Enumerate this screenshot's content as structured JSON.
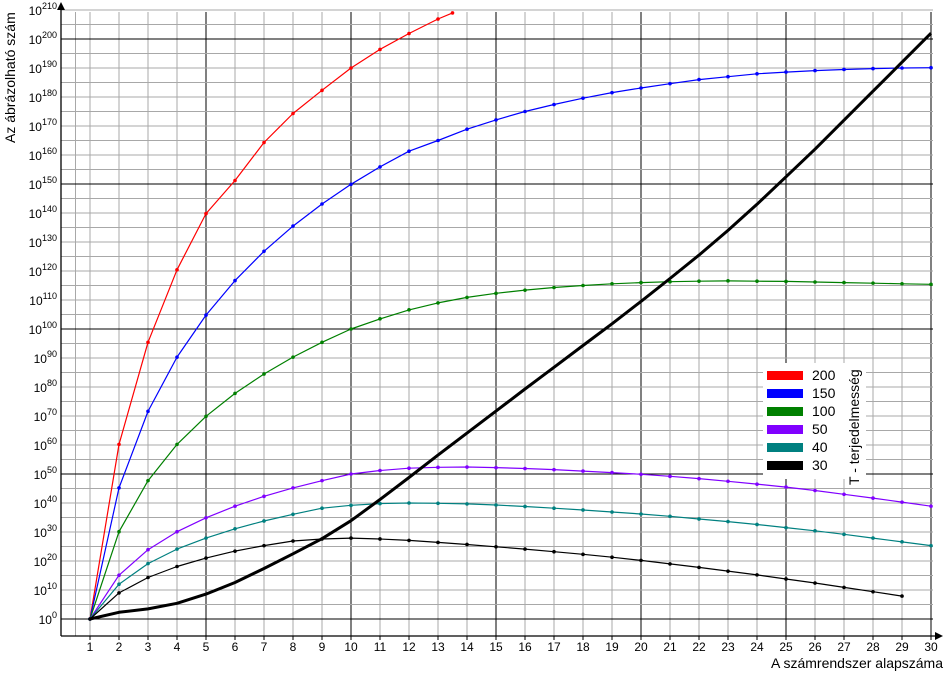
{
  "chart_data": {
    "type": "line",
    "xlabel": "A számrendszer alapszáma",
    "ylabel": "Az ábrázolható szám",
    "y_scale": "log10",
    "x": [
      1,
      2,
      3,
      4,
      5,
      6,
      7,
      8,
      9,
      10,
      11,
      12,
      13,
      14,
      15,
      16,
      17,
      18,
      19,
      20,
      21,
      22,
      23,
      24,
      25,
      26,
      27,
      28,
      29,
      30
    ],
    "xlim": [
      1,
      30
    ],
    "ylim": [
      0,
      210
    ],
    "y_ticks": [
      0,
      10,
      20,
      30,
      40,
      50,
      60,
      70,
      80,
      90,
      100,
      110,
      120,
      130,
      140,
      150,
      160,
      170,
      180,
      190,
      200,
      210
    ],
    "y_tick_base": "10",
    "grid": true,
    "legend_title": "T - terjedelmesség",
    "legend_position": "right",
    "series": [
      {
        "name": "200",
        "color": "#ff0000",
        "x": [
          1,
          2,
          3,
          4,
          5,
          6,
          7,
          8,
          9,
          10,
          11,
          12,
          13,
          13.5
        ],
        "values": [
          0,
          60.2,
          95.4,
          120.4,
          139.8,
          151.2,
          164.3,
          174.3,
          182.3,
          190.0,
          196.4,
          201.9,
          206.9,
          209.0
        ]
      },
      {
        "name": "150",
        "color": "#0000ff",
        "x": [
          1,
          2,
          3,
          4,
          5,
          6,
          7,
          8,
          9,
          10,
          11,
          12,
          13,
          14,
          15,
          16,
          17,
          18,
          19,
          20,
          21,
          22,
          23,
          24,
          25,
          26,
          27,
          28,
          29,
          30
        ],
        "values": [
          0,
          45.2,
          71.6,
          90.3,
          104.8,
          116.7,
          126.8,
          135.5,
          143.1,
          149.9,
          155.9,
          161.3,
          165.0,
          168.9,
          172.1,
          175.0,
          177.4,
          179.6,
          181.5,
          183.1,
          184.6,
          186.0,
          187.0,
          188.0,
          188.6,
          189.1,
          189.5,
          189.8,
          190.0,
          190.1
        ]
      },
      {
        "name": "100",
        "color": "#008000",
        "x": [
          1,
          2,
          3,
          4,
          5,
          6,
          7,
          8,
          9,
          10,
          11,
          12,
          13,
          14,
          15,
          16,
          17,
          18,
          19,
          20,
          21,
          22,
          23,
          24,
          25,
          26,
          27,
          28,
          29,
          30
        ],
        "values": [
          0,
          30.1,
          47.7,
          60.2,
          69.9,
          77.8,
          84.5,
          90.3,
          95.4,
          100.0,
          103.5,
          106.6,
          109.0,
          110.9,
          112.3,
          113.4,
          114.3,
          115.0,
          115.6,
          116.0,
          116.3,
          116.5,
          116.6,
          116.5,
          116.4,
          116.2,
          116.0,
          115.8,
          115.6,
          115.4
        ]
      },
      {
        "name": "50",
        "color": "#8000ff",
        "x": [
          1,
          2,
          3,
          4,
          5,
          6,
          7,
          8,
          9,
          10,
          11,
          12,
          13,
          14,
          15,
          16,
          17,
          18,
          19,
          20,
          21,
          22,
          23,
          24,
          25,
          26,
          27,
          28,
          29,
          30
        ],
        "values": [
          0,
          15.1,
          23.9,
          30.1,
          34.9,
          38.9,
          42.3,
          45.2,
          47.7,
          50.0,
          51.2,
          52.0,
          52.3,
          52.4,
          52.2,
          51.9,
          51.5,
          51.0,
          50.5,
          49.9,
          49.2,
          48.4,
          47.5,
          46.5,
          45.5,
          44.3,
          43.0,
          41.7,
          40.3,
          38.9
        ]
      },
      {
        "name": "40",
        "color": "#008080",
        "x": [
          1,
          2,
          3,
          4,
          5,
          6,
          7,
          8,
          9,
          10,
          11,
          12,
          13,
          14,
          15,
          16,
          17,
          18,
          19,
          20,
          21,
          22,
          23,
          24,
          25,
          26,
          27,
          28,
          29,
          30
        ],
        "values": [
          0,
          12.0,
          19.1,
          24.1,
          27.9,
          31.1,
          33.8,
          36.1,
          38.2,
          39.2,
          39.8,
          40.0,
          39.9,
          39.7,
          39.3,
          38.8,
          38.2,
          37.6,
          36.9,
          36.2,
          35.4,
          34.5,
          33.6,
          32.6,
          31.5,
          30.4,
          29.2,
          27.9,
          26.6,
          25.3
        ]
      },
      {
        "name": "30",
        "color": "#000000",
        "x": [
          1,
          2,
          3,
          4,
          5,
          6,
          7,
          8,
          9,
          10,
          11,
          12,
          13,
          14,
          15,
          16,
          17,
          18,
          19,
          20,
          21,
          22,
          23,
          24,
          25,
          26,
          27,
          28,
          29
        ],
        "values": [
          0,
          9.0,
          14.3,
          18.1,
          21.0,
          23.4,
          25.3,
          26.9,
          27.6,
          27.9,
          27.6,
          27.1,
          26.4,
          25.7,
          24.9,
          24.1,
          23.2,
          22.3,
          21.3,
          20.2,
          19.0,
          17.8,
          16.5,
          15.2,
          13.8,
          12.4,
          10.9,
          9.4,
          7.9
        ]
      },
      {
        "name": "",
        "color": "#000000",
        "bold": true,
        "x": [
          1,
          2,
          3,
          4,
          5,
          6,
          7,
          8,
          9,
          10,
          11,
          12,
          13,
          14,
          15,
          16,
          17,
          18,
          19,
          20,
          21,
          22,
          23,
          24,
          25,
          26,
          27,
          28,
          29,
          30
        ],
        "values": [
          0,
          2.3,
          3.5,
          5.4,
          8.6,
          12.6,
          17.4,
          22.5,
          27.7,
          33.9,
          41.2,
          48.8,
          56.5,
          64.1,
          71.7,
          79.3,
          86.8,
          94.3,
          101.8,
          109.5,
          117.4,
          125.5,
          134.0,
          143.0,
          152.5,
          162.0,
          172.0,
          182.0,
          192.0,
          202.0
        ]
      }
    ]
  },
  "legend": {
    "title": "T - terjedelmesség",
    "items": [
      {
        "label": "200",
        "color": "#ff0000"
      },
      {
        "label": "150",
        "color": "#0000ff"
      },
      {
        "label": "100",
        "color": "#008000"
      },
      {
        "label": "50",
        "color": "#8000ff"
      },
      {
        "label": "40",
        "color": "#008080"
      },
      {
        "label": "30",
        "color": "#000000"
      }
    ]
  }
}
